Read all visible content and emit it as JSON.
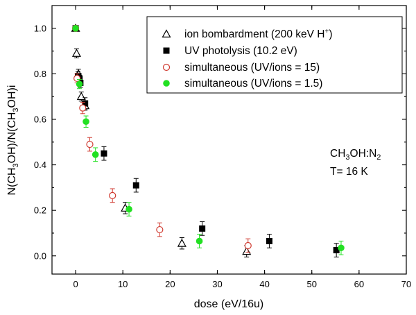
{
  "chart_data": {
    "type": "scatter",
    "title": "",
    "xlabel": "dose (eV/16u)",
    "ylabel_parts": {
      "a": "N(CH",
      "a_sub": "3",
      "b": "OH)/N(CH",
      "b_sub": "3",
      "c": "OH)i"
    },
    "xlim": [
      -5,
      70
    ],
    "ylim": [
      -0.08,
      1.1
    ],
    "xticks": [
      "0",
      "10",
      "20",
      "30",
      "40",
      "50",
      "60",
      "70"
    ],
    "xtick_values": [
      0,
      10,
      20,
      30,
      40,
      50,
      60,
      70
    ],
    "yticks": [
      "0.0",
      "0.2",
      "0.4",
      "0.6",
      "0.8",
      "1.0"
    ],
    "ytick_values": [
      0.0,
      0.2,
      0.4,
      0.6,
      0.8,
      1.0
    ],
    "legend_position": "top-right",
    "series": [
      {
        "name": "ion bombardment (200 keV H",
        "name_sup": "+",
        "name_end": ")",
        "marker": "triangle-open",
        "color": "#000000",
        "x": [
          0,
          0.2,
          0.6,
          1.2,
          2.0,
          10.5,
          22.5,
          36.2
        ],
        "y": [
          1.0,
          0.89,
          0.8,
          0.7,
          0.66,
          0.21,
          0.055,
          0.02
        ],
        "err": [
          0.01,
          0.02,
          0.02,
          0.02,
          0.02,
          0.025,
          0.025,
          0.025
        ]
      },
      {
        "name": "UV photolysis (10.2 eV)",
        "marker": "square-filled",
        "color": "#000000",
        "x": [
          0,
          0.5,
          0.8,
          1.0,
          2.0,
          6.0,
          12.8,
          26.8,
          41.0,
          55.2
        ],
        "y": [
          1.0,
          0.79,
          0.78,
          0.76,
          0.67,
          0.45,
          0.31,
          0.12,
          0.065,
          0.025
        ],
        "err": [
          0.01,
          0.02,
          0.02,
          0.02,
          0.025,
          0.03,
          0.03,
          0.03,
          0.03,
          0.03
        ]
      },
      {
        "name": "simultaneous (UV/ions = 15)",
        "marker": "circle-open",
        "color": "#d03a30",
        "x": [
          0,
          0.3,
          1.5,
          3.0,
          7.8,
          17.8,
          36.5
        ],
        "y": [
          1.0,
          0.78,
          0.65,
          0.49,
          0.265,
          0.115,
          0.045
        ],
        "err": [
          0.01,
          0.02,
          0.025,
          0.03,
          0.03,
          0.03,
          0.03
        ]
      },
      {
        "name": "simultaneous (UV/ions = 1.5)",
        "marker": "circle-filled",
        "color": "#22e022",
        "x": [
          0,
          0.8,
          2.2,
          4.2,
          11.3,
          26.2,
          56.2
        ],
        "y": [
          1.0,
          0.755,
          0.59,
          0.445,
          0.205,
          0.065,
          0.035
        ],
        "err": [
          0.01,
          0.02,
          0.025,
          0.03,
          0.03,
          0.03,
          0.03
        ]
      }
    ],
    "annotations": {
      "composition_a": "CH",
      "composition_sub1": "3",
      "composition_b": "OH:N",
      "composition_sub2": "2",
      "temperature": "T= 16 K"
    }
  }
}
